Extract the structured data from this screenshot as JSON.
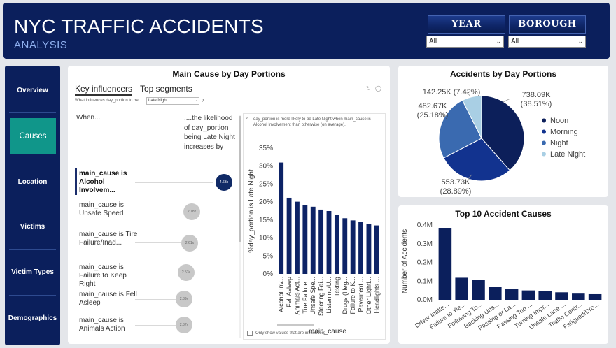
{
  "header": {
    "title": "NYC TRAFFIC ACCIDENTS",
    "subtitle": "ANALYSIS",
    "filters": [
      {
        "label": "YEAR",
        "value": "All"
      },
      {
        "label": "BOROUGH",
        "value": "All"
      }
    ]
  },
  "sidebar": {
    "items": [
      {
        "label": "Overview",
        "active": false
      },
      {
        "label": "Causes",
        "active": true
      },
      {
        "label": "Location",
        "active": false
      },
      {
        "label": "Victims",
        "active": false
      },
      {
        "label": "Victim Types",
        "active": false
      },
      {
        "label": "Demographics",
        "active": false
      }
    ]
  },
  "influencers": {
    "title": "Main Cause by Day Portions",
    "tabs": [
      "Key influencers",
      "Top segments"
    ],
    "question_label": "What influences day_portion to be",
    "question_value": "Late Night",
    "col_when": "When...",
    "col_likely": "....the likelihood of day_portion being Late Night increases by",
    "items": [
      {
        "text": "main_cause is Alcohol Involvem...",
        "value": "4.63x",
        "selected": true,
        "level": 4.63
      },
      {
        "text": "main_cause is Unsafe Speed",
        "value": "2.78x",
        "selected": false,
        "level": 2.78
      },
      {
        "text": "main_cause is Tire Failure/Inad...",
        "value": "2.61x",
        "selected": false,
        "level": 2.61
      },
      {
        "text": "main_cause is Failure to Keep Right",
        "value": "2.53x",
        "selected": false,
        "level": 2.53
      },
      {
        "text": "main_cause is Fell Asleep",
        "value": "2.39x",
        "selected": false,
        "level": 2.39
      },
      {
        "text": "main_cause is Animals Action",
        "value": "2.37x",
        "selected": false,
        "level": 2.37
      }
    ],
    "detail_text": "day_portion is more likely to be Late Night when main_cause is Alcohol Involvement than otherwise (on average).",
    "checkbox_label": "Only show values that are influencers"
  },
  "detail_chart": {
    "chart_data": {
      "type": "bar",
      "categories": [
        "Alcohol Inv...",
        "Fell Asleep",
        "Animals Act...",
        "Tire Failure...",
        "Unsafe Spe...",
        "Steering Fai...",
        "Listening/U...",
        "Texting",
        "Drugs (Illeg...",
        "Failure to K...",
        "Pavement ...",
        "Other Lighti...",
        "Headlights ..."
      ],
      "values": [
        31,
        21.2,
        20.1,
        19.2,
        18.7,
        17.9,
        17.5,
        16.4,
        15.5,
        14.9,
        14.4,
        13.9,
        13.5
      ],
      "average": 7.5,
      "yticks": [
        "35%",
        "30%",
        "25%",
        "20%",
        "15%",
        "10%",
        "5%",
        "0%"
      ],
      "ylim": [
        0,
        35
      ],
      "xlabel": "main_cause",
      "ylabel": "%day_portion is Late Night",
      "color": "#0d2366"
    }
  },
  "pie": {
    "title": "Accidents by Day Portions",
    "chart_data": {
      "type": "pie",
      "slices": [
        {
          "name": "Noon",
          "value": 738.09,
          "pct": 38.51,
          "label": "738.09K",
          "pct_label": "(38.51%)",
          "color": "#0c1f5a"
        },
        {
          "name": "Morning",
          "value": 553.73,
          "pct": 28.89,
          "label": "553.73K",
          "pct_label": "(28.89%)",
          "color": "#12338f"
        },
        {
          "name": "Night",
          "value": 482.67,
          "pct": 25.18,
          "label": "482.67K",
          "pct_label": "(25.18%)",
          "color": "#3a6ab0"
        },
        {
          "name": "Late Night",
          "value": 142.25,
          "pct": 7.42,
          "label": "142.25K",
          "pct_label": "(7.42%)",
          "color": "#a9cfe4"
        }
      ],
      "legend_position": "right"
    }
  },
  "top10": {
    "title": "Top 10 Accident Causes",
    "chart_data": {
      "type": "bar",
      "categories": [
        "Driver Inatte...",
        "Failure to Yie...",
        "Following To...",
        "Backing Uns...",
        "Passing or La...",
        "Passing Too ...",
        "Turning Impr...",
        "Unsafe Lane ...",
        "Traffic Contr...",
        "Fatigued/Dro..."
      ],
      "values": [
        385000,
        118000,
        108000,
        70000,
        56000,
        50000,
        46000,
        40000,
        33000,
        30000
      ],
      "yticks": [
        "0.4M",
        "0.3M",
        "0.2M",
        "0.1M",
        "0.0M"
      ],
      "ylim": [
        0,
        400000
      ],
      "ylabel": "Number of Accidents",
      "color": "#0b1f5c"
    }
  }
}
